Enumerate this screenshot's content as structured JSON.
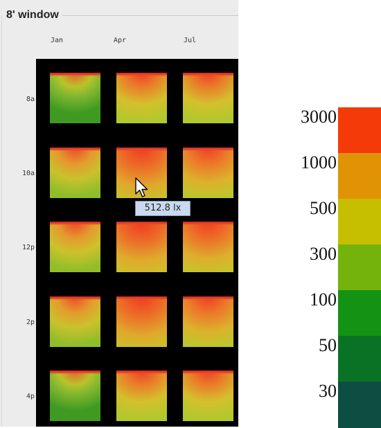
{
  "panel": {
    "title": "8' window"
  },
  "columns": [
    "Jan",
    "Apr",
    "Jul"
  ],
  "rows": [
    "8a",
    "10a",
    "12p",
    "2p",
    "4p"
  ],
  "tooltip": {
    "text": "512.8 lx"
  },
  "legend": {
    "entries": [
      {
        "label": "3000",
        "color": "#f53a0a"
      },
      {
        "label": "1000",
        "color": "#e19306"
      },
      {
        "label": "500",
        "color": "#c6bf00"
      },
      {
        "label": "300",
        "color": "#74b20c"
      },
      {
        "label": "100",
        "color": "#139213"
      },
      {
        "label": "50",
        "color": "#0a7225"
      },
      {
        "label": "30",
        "color": "#0d4e42"
      }
    ]
  }
}
